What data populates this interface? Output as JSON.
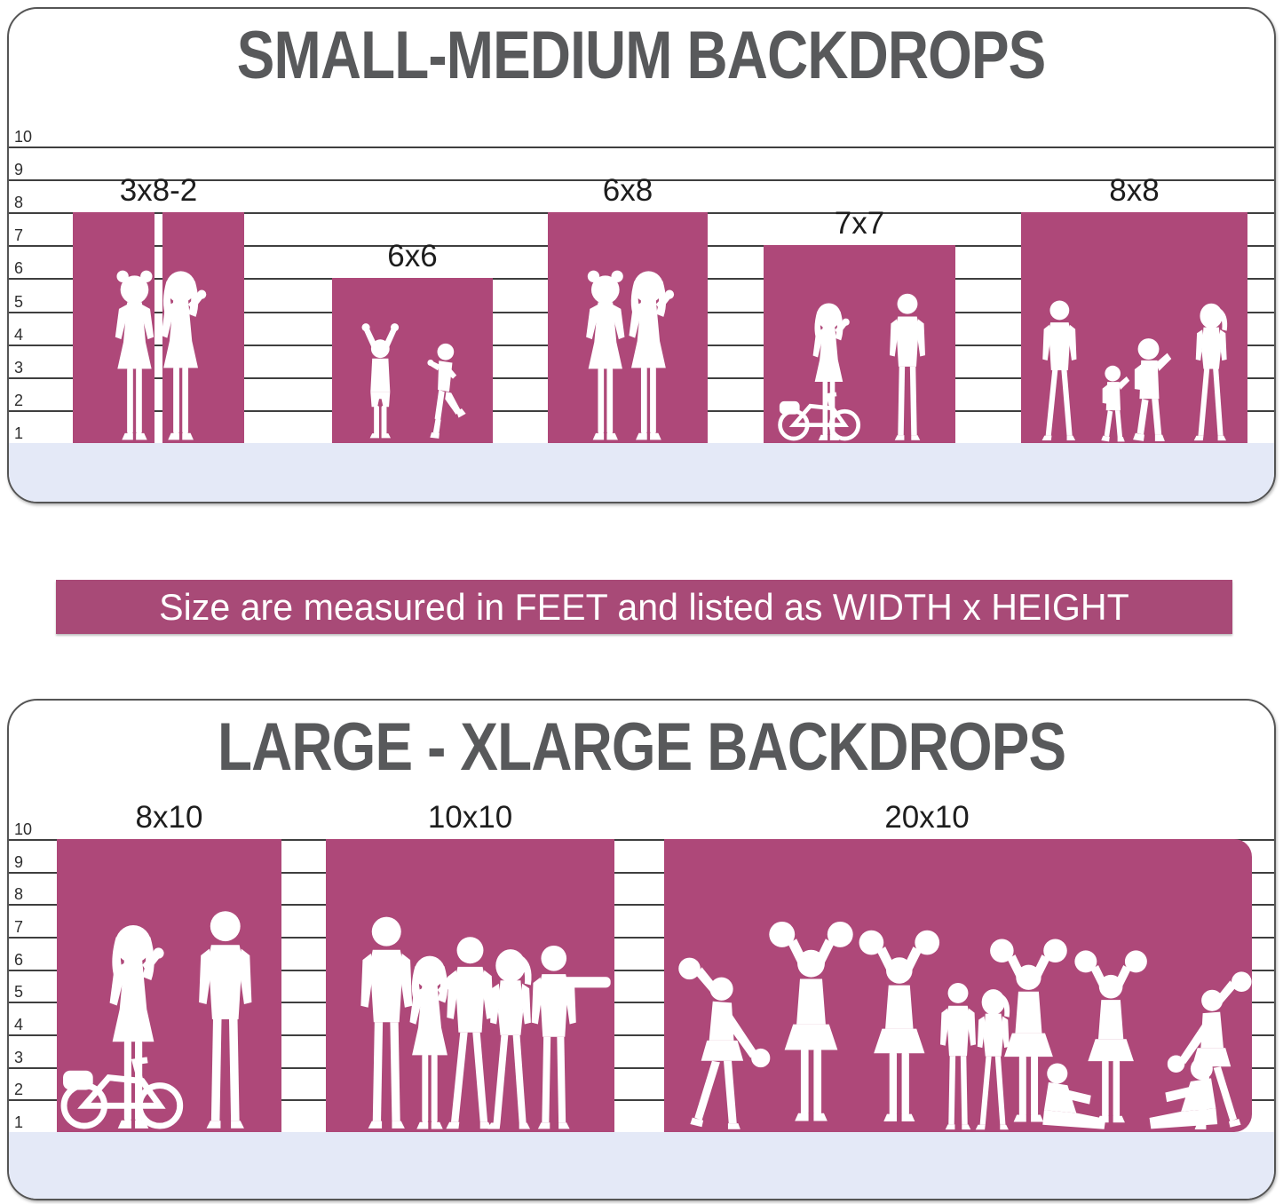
{
  "colors": {
    "background": "#ffffff",
    "backdrop_pink": "#ae4879",
    "banner_pink": "#a84a77",
    "floor_blue": "#e4e9f7",
    "grid_line": "#3f3f3f",
    "panel_border": "#555555",
    "title_gray": "#58595b",
    "label_dark": "#1d1d1d",
    "silhouette_white": "#ffffff"
  },
  "banner": {
    "text": "Size are measured in FEET and listed as WIDTH x HEIGHT"
  },
  "panels": [
    {
      "id": "small-medium",
      "title": "SMALL-MEDIUM BACKDROPS",
      "scale_feet": [
        "10",
        "9",
        "8",
        "7",
        "6",
        "5",
        "4",
        "3",
        "2",
        "1"
      ],
      "backdrops": [
        {
          "label": "3x8-2",
          "width_ft": 3,
          "height_ft": 8,
          "panel_count": 2,
          "silhouette": "two-girls"
        },
        {
          "label": "6x6",
          "width_ft": 6,
          "height_ft": 6,
          "panel_count": 1,
          "silhouette": "two-kids"
        },
        {
          "label": "6x8",
          "width_ft": 6,
          "height_ft": 8,
          "panel_count": 1,
          "silhouette": "two-girls"
        },
        {
          "label": "7x7",
          "width_ft": 7,
          "height_ft": 7,
          "panel_count": 1,
          "silhouette": "woman-bicycle-and-man"
        },
        {
          "label": "8x8",
          "width_ft": 8,
          "height_ft": 8,
          "panel_count": 1,
          "silhouette": "family-walking"
        }
      ]
    },
    {
      "id": "large-xlarge",
      "title": "LARGE - XLARGE BACKDROPS",
      "scale_feet": [
        "10",
        "9",
        "8",
        "7",
        "6",
        "5",
        "4",
        "3",
        "2",
        "1"
      ],
      "backdrops": [
        {
          "label": "8x10",
          "width_ft": 8,
          "height_ft": 10,
          "panel_count": 1,
          "silhouette": "woman-bicycle-and-man"
        },
        {
          "label": "10x10",
          "width_ft": 10,
          "height_ft": 10,
          "panel_count": 1,
          "silhouette": "group-of-adults"
        },
        {
          "label": "20x10",
          "width_ft": 20,
          "height_ft": 10,
          "panel_count": 1,
          "silhouette": "cheerleading-squad"
        }
      ]
    }
  ]
}
